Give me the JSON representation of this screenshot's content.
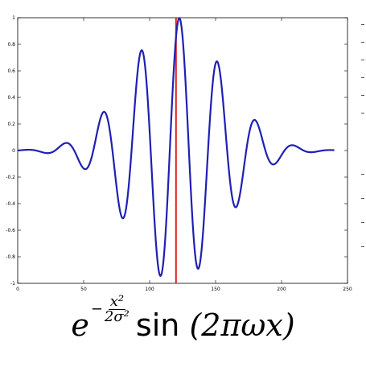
{
  "chart_data": {
    "type": "line",
    "title": "",
    "xlabel": "",
    "ylabel": "",
    "xlim": [
      0,
      250
    ],
    "ylim": [
      -1,
      1
    ],
    "xticks": [
      0,
      50,
      100,
      150,
      200,
      250
    ],
    "yticks": [
      -1,
      -0.8,
      -0.6,
      -0.4,
      -0.2,
      0,
      0.2,
      0.4,
      0.6,
      0.8,
      1
    ],
    "xtick_labels": [
      "0",
      "50",
      "100",
      "150",
      "200",
      "250"
    ],
    "ytick_labels": [
      "-1",
      "-0.8",
      "-0.6",
      "-0.4",
      "-0.2",
      "0",
      "0.2",
      "0.4",
      "0.6",
      "0.8",
      "1"
    ],
    "grid": false,
    "series": [
      {
        "color": "#1f1fb4",
        "function": "gabor",
        "x_range": [
          0,
          240
        ],
        "center": 120,
        "sigma": 35,
        "omega": 0.0345
      }
    ],
    "vertical_lines": [
      {
        "x": 120,
        "color": "#e02020"
      }
    ]
  },
  "formula": {
    "base": "e",
    "exp_sign": "−",
    "exp_num": "x²",
    "exp_den": "2σ²",
    "fn": "sin",
    "arg": "(2πωx)"
  }
}
